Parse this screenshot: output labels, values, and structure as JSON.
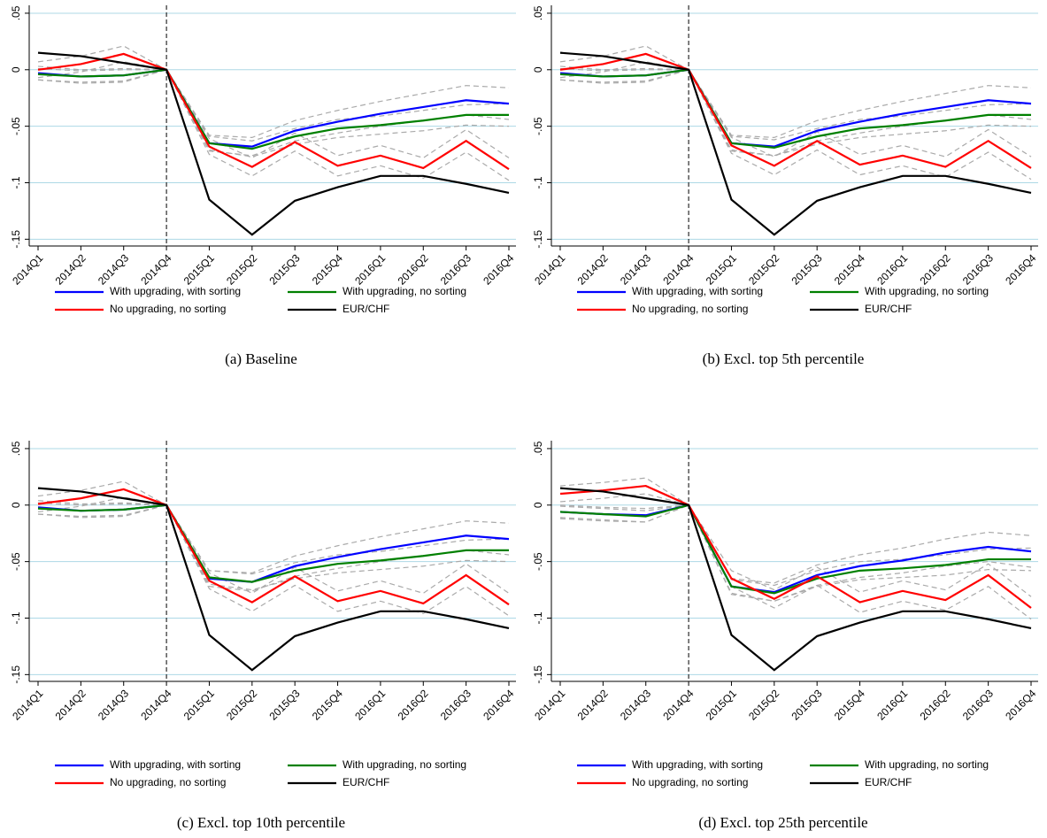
{
  "chart_data": [
    {
      "type": "line",
      "title": "(a) Baseline",
      "categories": [
        "2014Q1",
        "2014Q2",
        "2014Q3",
        "2014Q4",
        "2015Q1",
        "2015Q2",
        "2015Q3",
        "2015Q4",
        "2016Q1",
        "2016Q2",
        "2016Q3",
        "2016Q4"
      ],
      "vline": "2014Q4",
      "ylim": [
        -0.156,
        0.057
      ],
      "yticks": [
        {
          "value": 0.05,
          "label": ".05"
        },
        0,
        {
          "value": -0.05,
          "label": "-.05"
        },
        {
          "value": -0.1,
          "label": "-.1"
        },
        {
          "value": -0.15,
          "label": "-.15"
        }
      ],
      "grid": true,
      "series": [
        {
          "name": "With upgrading, with sorting",
          "color": "#0000ff",
          "values": [
            -0.003,
            -0.006,
            -0.005,
            0,
            -0.065,
            -0.068,
            -0.054,
            -0.046,
            -0.039,
            -0.033,
            -0.027,
            -0.03
          ],
          "ci_upper": [
            0.003,
            0,
            0.001,
            0,
            -0.058,
            -0.06,
            -0.045,
            -0.036,
            -0.028,
            -0.021,
            -0.014,
            -0.016
          ],
          "ci_lower": [
            -0.009,
            -0.012,
            -0.011,
            0,
            -0.072,
            -0.076,
            -0.063,
            -0.056,
            -0.05,
            -0.045,
            -0.04,
            -0.044
          ]
        },
        {
          "name": "With upgrading, no sorting",
          "color": "#008000",
          "values": [
            -0.004,
            -0.006,
            -0.005,
            0,
            -0.065,
            -0.07,
            -0.059,
            -0.052,
            -0.049,
            -0.045,
            -0.04,
            -0.04
          ],
          "ci_upper": [
            0.001,
            -0.001,
            0,
            0,
            -0.059,
            -0.063,
            -0.052,
            -0.044,
            -0.041,
            -0.036,
            -0.031,
            -0.03
          ],
          "ci_lower": [
            -0.009,
            -0.011,
            -0.01,
            0,
            -0.071,
            -0.077,
            -0.066,
            -0.06,
            -0.057,
            -0.054,
            -0.049,
            -0.05
          ]
        },
        {
          "name": "No upgrading, no sorting",
          "color": "#ff0000",
          "values": [
            0,
            0.005,
            0.014,
            0,
            -0.068,
            -0.086,
            -0.064,
            -0.085,
            -0.076,
            -0.087,
            -0.063,
            -0.088
          ],
          "ci_upper": [
            0.007,
            0.012,
            0.021,
            0,
            -0.061,
            -0.078,
            -0.056,
            -0.076,
            -0.067,
            -0.078,
            -0.053,
            -0.078
          ],
          "ci_lower": [
            -0.007,
            -0.002,
            0.007,
            0,
            -0.075,
            -0.094,
            -0.072,
            -0.094,
            -0.085,
            -0.096,
            -0.073,
            -0.098
          ]
        },
        {
          "name": "EUR/CHF",
          "color": "#000000",
          "values": [
            0.015,
            0.012,
            0.006,
            0,
            -0.115,
            -0.146,
            -0.116,
            -0.104,
            -0.094,
            -0.094,
            -0.101,
            -0.109
          ]
        }
      ]
    },
    {
      "type": "line",
      "title": "(b) Excl. top 5th percentile",
      "categories": [
        "2014Q1",
        "2014Q2",
        "2014Q3",
        "2014Q4",
        "2015Q1",
        "2015Q2",
        "2015Q3",
        "2015Q4",
        "2016Q1",
        "2016Q2",
        "2016Q3",
        "2016Q4"
      ],
      "vline": "2014Q4",
      "ylim": [
        -0.156,
        0.057
      ],
      "yticks": [
        {
          "value": 0.05,
          "label": ".05"
        },
        0,
        {
          "value": -0.05,
          "label": "-.05"
        },
        {
          "value": -0.1,
          "label": "-.1"
        },
        {
          "value": -0.15,
          "label": "-.15"
        }
      ],
      "grid": true,
      "series": [
        {
          "name": "With upgrading, with sorting",
          "color": "#0000ff",
          "values": [
            -0.003,
            -0.006,
            -0.005,
            0,
            -0.065,
            -0.068,
            -0.054,
            -0.046,
            -0.039,
            -0.033,
            -0.027,
            -0.03
          ],
          "ci_upper": [
            0.003,
            0,
            0.001,
            0,
            -0.058,
            -0.06,
            -0.045,
            -0.036,
            -0.028,
            -0.021,
            -0.014,
            -0.016
          ],
          "ci_lower": [
            -0.009,
            -0.012,
            -0.011,
            0,
            -0.072,
            -0.076,
            -0.063,
            -0.056,
            -0.05,
            -0.045,
            -0.04,
            -0.044
          ]
        },
        {
          "name": "With upgrading, no sorting",
          "color": "#008000",
          "values": [
            -0.004,
            -0.006,
            -0.005,
            0,
            -0.065,
            -0.069,
            -0.059,
            -0.052,
            -0.049,
            -0.045,
            -0.04,
            -0.04
          ],
          "ci_upper": [
            0.001,
            -0.001,
            0,
            0,
            -0.059,
            -0.062,
            -0.052,
            -0.044,
            -0.041,
            -0.036,
            -0.031,
            -0.03
          ],
          "ci_lower": [
            -0.009,
            -0.011,
            -0.01,
            0,
            -0.071,
            -0.076,
            -0.066,
            -0.06,
            -0.057,
            -0.054,
            -0.049,
            -0.05
          ]
        },
        {
          "name": "No upgrading, no sorting",
          "color": "#ff0000",
          "values": [
            0,
            0.005,
            0.014,
            0,
            -0.067,
            -0.085,
            -0.063,
            -0.084,
            -0.076,
            -0.086,
            -0.063,
            -0.087
          ],
          "ci_upper": [
            0.007,
            0.012,
            0.021,
            0,
            -0.06,
            -0.077,
            -0.055,
            -0.075,
            -0.067,
            -0.077,
            -0.053,
            -0.077
          ],
          "ci_lower": [
            -0.007,
            -0.002,
            0.007,
            0,
            -0.074,
            -0.093,
            -0.071,
            -0.093,
            -0.085,
            -0.095,
            -0.073,
            -0.097
          ]
        },
        {
          "name": "EUR/CHF",
          "color": "#000000",
          "values": [
            0.015,
            0.012,
            0.006,
            0,
            -0.115,
            -0.146,
            -0.116,
            -0.104,
            -0.094,
            -0.094,
            -0.101,
            -0.109
          ]
        }
      ]
    },
    {
      "type": "line",
      "title": "(c) Excl. top 10th percentile",
      "categories": [
        "2014Q1",
        "2014Q2",
        "2014Q3",
        "2014Q4",
        "2015Q1",
        "2015Q2",
        "2015Q3",
        "2015Q4",
        "2016Q1",
        "2016Q2",
        "2016Q3",
        "2016Q4"
      ],
      "vline": "2014Q4",
      "ylim": [
        -0.156,
        0.057
      ],
      "yticks": [
        {
          "value": 0.05,
          "label": ".05"
        },
        0,
        {
          "value": -0.05,
          "label": "-.05"
        },
        {
          "value": -0.1,
          "label": "-.1"
        },
        {
          "value": -0.15,
          "label": "-.15"
        }
      ],
      "grid": true,
      "series": [
        {
          "name": "With upgrading, with sorting",
          "color": "#0000ff",
          "values": [
            -0.002,
            -0.005,
            -0.004,
            0,
            -0.065,
            -0.068,
            -0.054,
            -0.046,
            -0.039,
            -0.033,
            -0.027,
            -0.03
          ],
          "ci_upper": [
            0.004,
            0.001,
            0.002,
            0,
            -0.058,
            -0.06,
            -0.045,
            -0.036,
            -0.028,
            -0.021,
            -0.014,
            -0.016
          ],
          "ci_lower": [
            -0.008,
            -0.011,
            -0.01,
            0,
            -0.072,
            -0.076,
            -0.063,
            -0.056,
            -0.05,
            -0.045,
            -0.04,
            -0.044
          ]
        },
        {
          "name": "With upgrading, no sorting",
          "color": "#008000",
          "values": [
            -0.003,
            -0.005,
            -0.004,
            0,
            -0.064,
            -0.068,
            -0.058,
            -0.052,
            -0.049,
            -0.045,
            -0.04,
            -0.04
          ],
          "ci_upper": [
            0.002,
            0,
            0.001,
            0,
            -0.058,
            -0.061,
            -0.051,
            -0.044,
            -0.041,
            -0.036,
            -0.031,
            -0.03
          ],
          "ci_lower": [
            -0.008,
            -0.01,
            -0.009,
            0,
            -0.07,
            -0.075,
            -0.065,
            -0.06,
            -0.057,
            -0.054,
            -0.049,
            -0.05
          ]
        },
        {
          "name": "No upgrading, no sorting",
          "color": "#ff0000",
          "values": [
            0.001,
            0.006,
            0.014,
            0,
            -0.067,
            -0.086,
            -0.063,
            -0.085,
            -0.076,
            -0.087,
            -0.062,
            -0.088
          ],
          "ci_upper": [
            0.008,
            0.013,
            0.021,
            0,
            -0.06,
            -0.078,
            -0.055,
            -0.076,
            -0.067,
            -0.078,
            -0.052,
            -0.078
          ],
          "ci_lower": [
            -0.006,
            -0.001,
            0.007,
            0,
            -0.074,
            -0.094,
            -0.071,
            -0.094,
            -0.085,
            -0.096,
            -0.072,
            -0.098
          ]
        },
        {
          "name": "EUR/CHF",
          "color": "#000000",
          "values": [
            0.015,
            0.012,
            0.006,
            0,
            -0.115,
            -0.146,
            -0.116,
            -0.104,
            -0.094,
            -0.094,
            -0.101,
            -0.109
          ]
        }
      ]
    },
    {
      "type": "line",
      "title": "(d) Excl. top 25th percentile",
      "categories": [
        "2014Q1",
        "2014Q2",
        "2014Q3",
        "2014Q4",
        "2015Q1",
        "2015Q2",
        "2015Q3",
        "2015Q4",
        "2016Q1",
        "2016Q2",
        "2016Q3",
        "2016Q4"
      ],
      "vline": "2014Q4",
      "ylim": [
        -0.156,
        0.057
      ],
      "yticks": [
        {
          "value": 0.05,
          "label": ".05"
        },
        0,
        {
          "value": -0.05,
          "label": "-.05"
        },
        {
          "value": -0.1,
          "label": "-.1"
        },
        {
          "value": -0.15,
          "label": "-.15"
        }
      ],
      "grid": true,
      "series": [
        {
          "name": "With upgrading, with sorting",
          "color": "#0000ff",
          "values": [
            -0.006,
            -0.008,
            -0.009,
            0,
            -0.072,
            -0.077,
            -0.062,
            -0.054,
            -0.049,
            -0.042,
            -0.037,
            -0.041
          ],
          "ci_upper": [
            0,
            -0.002,
            -0.003,
            0,
            -0.065,
            -0.069,
            -0.053,
            -0.044,
            -0.038,
            -0.03,
            -0.024,
            -0.027
          ],
          "ci_lower": [
            -0.012,
            -0.014,
            -0.015,
            0,
            -0.079,
            -0.085,
            -0.071,
            -0.064,
            -0.06,
            -0.054,
            -0.05,
            -0.055
          ]
        },
        {
          "name": "With upgrading, no sorting",
          "color": "#008000",
          "values": [
            -0.006,
            -0.008,
            -0.01,
            0,
            -0.072,
            -0.078,
            -0.065,
            -0.058,
            -0.056,
            -0.053,
            -0.048,
            -0.048
          ],
          "ci_upper": [
            -0.001,
            -0.003,
            -0.005,
            0,
            -0.066,
            -0.071,
            -0.058,
            -0.05,
            -0.048,
            -0.044,
            -0.039,
            -0.038
          ],
          "ci_lower": [
            -0.011,
            -0.013,
            -0.015,
            0,
            -0.078,
            -0.085,
            -0.072,
            -0.066,
            -0.064,
            -0.062,
            -0.057,
            -0.058
          ]
        },
        {
          "name": "No upgrading, no sorting",
          "color": "#ff0000",
          "values": [
            0.01,
            0.013,
            0.017,
            0,
            -0.065,
            -0.083,
            -0.063,
            -0.086,
            -0.076,
            -0.084,
            -0.062,
            -0.091
          ],
          "ci_upper": [
            0.017,
            0.02,
            0.024,
            0,
            -0.058,
            -0.075,
            -0.055,
            -0.077,
            -0.067,
            -0.075,
            -0.052,
            -0.081
          ],
          "ci_lower": [
            0.003,
            0.006,
            0.01,
            0,
            -0.072,
            -0.091,
            -0.071,
            -0.095,
            -0.085,
            -0.093,
            -0.072,
            -0.101
          ]
        },
        {
          "name": "EUR/CHF",
          "color": "#000000",
          "values": [
            0.015,
            0.012,
            0.006,
            0,
            -0.115,
            -0.146,
            -0.116,
            -0.104,
            -0.094,
            -0.094,
            -0.101,
            -0.109
          ]
        }
      ]
    }
  ]
}
